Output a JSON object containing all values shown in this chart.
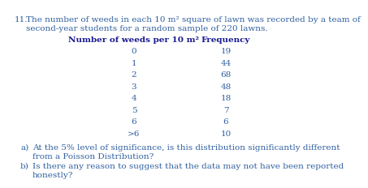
{
  "question_number": "11.",
  "intro_line1": "The number of weeds in each 10 m² square of lawn was recorded by a team of",
  "intro_line2": "second-year students for a random sample of 220 lawns.",
  "col1_header": "Number of weeds per 10 m²",
  "col2_header": "Frequency",
  "rows": [
    [
      "0",
      "19"
    ],
    [
      "1",
      "44"
    ],
    [
      "2",
      "68"
    ],
    [
      "3",
      "48"
    ],
    [
      "4",
      "18"
    ],
    [
      "5",
      "7"
    ],
    [
      "6",
      "6"
    ],
    [
      ">6",
      "10"
    ]
  ],
  "part_a_label": "a)",
  "part_a_line1": "At the 5% level of significance, is this distribution significantly different",
  "part_a_line2": "from a Poisson Distribution?",
  "part_b_label": "b)",
  "part_b_line1": "Is there any reason to suggest that the data may not have been reported",
  "part_b_line2": "honestly?",
  "text_color": "#3060a0",
  "header_color": "#1a1a90",
  "bg_color": "#ffffff",
  "font_size": 7.5
}
